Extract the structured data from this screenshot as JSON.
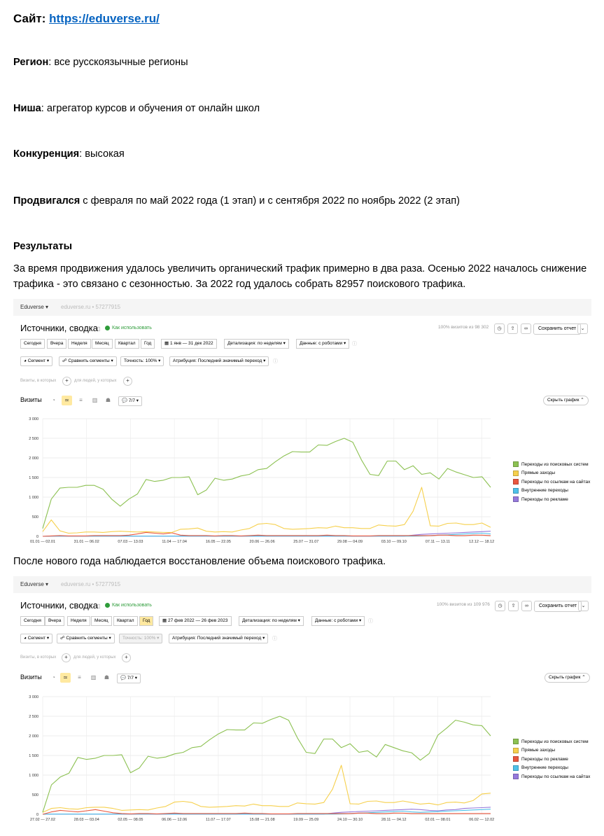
{
  "doc": {
    "site_label": "Сайт: ",
    "site_url": "https://eduverse.ru/",
    "region_label": "Регион",
    "region_value": ": все русскоязычные регионы",
    "niche_label": "Ниша",
    "niche_value": ": агрегатор курсов и обучения от онлайн школ",
    "competition_label": "Конкуренция",
    "competition_value": ": высокая",
    "promoted_label": "Продвигался",
    "promoted_value": " с февраля по май 2022 года (1 этап) и с сентября 2022 по ноябрь 2022 (2 этап)",
    "results_heading": "Результаты",
    "results_line1": "За время продвижения удалось увеличить органический трафик примерно в два раза. Осенью 2022 началось снижение",
    "results_line2": "трафика - это связано с сезонностью. За 2022 год удалось собрать 82957 поискового трафика.",
    "after_new_year": "После нового года наблюдается восстановление объема поискового трафика."
  },
  "screenshot1": {
    "account": "Eduverse ▾",
    "counter": "eduverse.ru • 57277915",
    "title": "Источники, сводка",
    "howto": "Как использовать",
    "visits_pct": "100% визитов из 98 302",
    "save_report": "Сохранить отчет",
    "periods": [
      "Сегодня",
      "Вчера",
      "Неделя",
      "Месяц",
      "Квартал",
      "Год"
    ],
    "date_range": "1 янв — 31 дек 2022",
    "detail": "Детализация: по неделям ▾",
    "data": "Данные: с роботами ▾",
    "segment": "Сегмент ▾",
    "compare": "Сравнить сегменты ▾",
    "accuracy": "Точность: 100% ▾",
    "attribution": "Атрибуция: Последний значимый переход ▾",
    "hint1": "Визиты, в которых",
    "hint2": "для людей, у которых",
    "visits_label": "Визиты",
    "series_count": "7/7 ▾",
    "hide_chart": "Скрыть график ⌃",
    "legend": [
      {
        "label": "Переходы из поисковых систем",
        "color": "#8cc152"
      },
      {
        "label": "Прямые заходы",
        "color": "#f6d04d"
      },
      {
        "label": "Переходы по ссылкам на сайтах",
        "color": "#e9573f"
      },
      {
        "label": "Внутренние переходы",
        "color": "#4fc1e9"
      },
      {
        "label": "Переходы по рекламе",
        "color": "#967adc"
      }
    ]
  },
  "screenshot2": {
    "account": "Eduverse ▾",
    "counter": "eduverse.ru • 57277915",
    "title": "Источники, сводка",
    "howto": "Как использовать",
    "visits_pct": "100% визитов из 109 976",
    "save_report": "Сохранить отчет",
    "periods": [
      "Сегодня",
      "Вчера",
      "Неделя",
      "Месяц",
      "Квартал",
      "Год"
    ],
    "date_range": "27 фев 2022 — 26 фев 2023",
    "detail": "Детализация: по неделям ▾",
    "data": "Данные: с роботами ▾",
    "segment": "Сегмент ▾",
    "compare": "Сравнить сегменты ▾",
    "accuracy": "Точность: 100% ▾",
    "attribution": "Атрибуция: Последний значимый переход ▾",
    "hint1": "Визиты, в которых",
    "hint2": "для людей, у которых",
    "visits_label": "Визиты",
    "series_count": "7/7 ▾",
    "hide_chart": "Скрыть график ⌃",
    "legend": [
      {
        "label": "Переходы из поисковых систем",
        "color": "#8cc152"
      },
      {
        "label": "Прямые заходы",
        "color": "#f6d04d"
      },
      {
        "label": "Переходы по рекламе",
        "color": "#e9573f"
      },
      {
        "label": "Внутренние переходы",
        "color": "#4fc1e9"
      },
      {
        "label": "Переходы по ссылкам на сайтах",
        "color": "#967adc"
      }
    ]
  },
  "chart_data": [
    {
      "type": "line",
      "title": "",
      "ylim": [
        0,
        3000
      ],
      "yticks": [
        0,
        500,
        1000,
        1500,
        2000,
        2500,
        3000
      ],
      "ytick_labels": [
        "0",
        "500",
        "1 000",
        "1 500",
        "2 000",
        "2 500",
        "3 000"
      ],
      "xtick_labels": [
        "01.01 — 02.01",
        "31.01 — 06.02",
        "07.03 — 13.03",
        "11.04 — 17.04",
        "16.05 — 22.05",
        "20.06 — 26.06",
        "25.07 — 31.07",
        "29.08 — 04.09",
        "03.10 — 09.10",
        "07.11 — 13.11",
        "12.12 — 18.12"
      ],
      "series": [
        {
          "name": "Переходы из поисковых систем",
          "color": "#8cc152",
          "values": [
            200,
            950,
            1230,
            1250,
            1250,
            1300,
            1300,
            1200,
            950,
            770,
            950,
            1080,
            1450,
            1400,
            1430,
            1500,
            1500,
            1520,
            1060,
            1180,
            1480,
            1430,
            1460,
            1540,
            1580,
            1700,
            1730,
            1900,
            2050,
            2160,
            2150,
            2150,
            2330,
            2320,
            2420,
            2500,
            2400,
            1950,
            1580,
            1550,
            1920,
            1920,
            1700,
            1800,
            1580,
            1620,
            1460,
            1730,
            1640,
            1570,
            1500,
            1520,
            1250
          ]
        },
        {
          "name": "Прямые заходы",
          "color": "#f6d04d",
          "values": [
            120,
            420,
            140,
            80,
            90,
            110,
            110,
            100,
            120,
            130,
            120,
            110,
            120,
            110,
            100,
            100,
            180,
            190,
            210,
            130,
            110,
            120,
            110,
            160,
            200,
            310,
            330,
            300,
            200,
            180,
            190,
            200,
            220,
            210,
            260,
            220,
            220,
            200,
            200,
            290,
            270,
            260,
            300,
            640,
            1250,
            270,
            260,
            330,
            340,
            300,
            300,
            340,
            230
          ]
        },
        {
          "name": "Переходы по ссылкам на сайтах",
          "color": "#e9573f",
          "values": [
            0,
            10,
            20,
            10,
            10,
            10,
            20,
            20,
            20,
            20,
            30,
            60,
            100,
            80,
            60,
            90,
            30,
            20,
            20,
            20,
            10,
            20,
            20,
            10,
            20,
            30,
            20,
            20,
            20,
            20,
            20,
            20,
            20,
            30,
            20,
            20,
            10,
            10,
            10,
            20,
            20,
            20,
            20,
            20,
            20,
            20,
            30,
            30,
            20,
            20,
            30,
            30,
            20
          ]
        },
        {
          "name": "Внутренние переходы",
          "color": "#4fc1e9",
          "values": [
            0,
            5,
            5,
            5,
            5,
            5,
            5,
            5,
            5,
            5,
            5,
            5,
            5,
            5,
            5,
            5,
            5,
            5,
            5,
            5,
            5,
            5,
            5,
            5,
            5,
            5,
            5,
            5,
            5,
            5,
            5,
            5,
            5,
            5,
            5,
            5,
            5,
            5,
            5,
            5,
            5,
            5,
            5,
            5,
            10,
            20,
            30,
            40,
            50,
            60,
            70,
            80,
            60
          ]
        },
        {
          "name": "Переходы по рекламе",
          "color": "#967adc",
          "values": [
            0,
            5,
            5,
            5,
            5,
            5,
            5,
            5,
            5,
            5,
            5,
            5,
            5,
            5,
            5,
            5,
            5,
            5,
            5,
            5,
            5,
            5,
            5,
            5,
            5,
            5,
            5,
            5,
            5,
            5,
            5,
            5,
            5,
            5,
            5,
            5,
            5,
            5,
            5,
            5,
            5,
            5,
            5,
            30,
            50,
            60,
            70,
            80,
            90,
            100,
            110,
            120,
            130
          ]
        }
      ]
    },
    {
      "type": "line",
      "title": "",
      "ylim": [
        0,
        3000
      ],
      "yticks": [
        0,
        500,
        1000,
        1500,
        2000,
        2500,
        3000
      ],
      "ytick_labels": [
        "0",
        "500",
        "1 000",
        "1 500",
        "2 000",
        "2 500",
        "3 000"
      ],
      "xtick_labels": [
        "27.02 — 27.02",
        "28.03 — 03.04",
        "02.05 — 08.05",
        "06.06 — 12.06",
        "11.07 — 17.07",
        "15.08 — 21.08",
        "19.09 — 25.09",
        "24.10 — 30.10",
        "28.11 — 04.12",
        "02.01 — 08.01",
        "06.02 — 12.02"
      ],
      "series": [
        {
          "name": "Переходы из поисковых систем",
          "color": "#8cc152",
          "values": [
            50,
            750,
            950,
            1050,
            1450,
            1400,
            1430,
            1500,
            1500,
            1520,
            1060,
            1180,
            1480,
            1430,
            1460,
            1540,
            1580,
            1700,
            1730,
            1900,
            2050,
            2160,
            2150,
            2150,
            2330,
            2320,
            2420,
            2500,
            2400,
            1950,
            1580,
            1550,
            1920,
            1920,
            1700,
            1800,
            1580,
            1620,
            1460,
            1780,
            1700,
            1620,
            1570,
            1380,
            1550,
            2020,
            2200,
            2400,
            2350,
            2280,
            2260,
            2000
          ]
        },
        {
          "name": "Прямые заходы",
          "color": "#f6d04d",
          "values": [
            50,
            150,
            170,
            140,
            130,
            170,
            180,
            180,
            150,
            100,
            110,
            120,
            110,
            160,
            200,
            310,
            330,
            300,
            200,
            180,
            190,
            200,
            220,
            210,
            260,
            220,
            220,
            200,
            200,
            290,
            270,
            260,
            300,
            640,
            1250,
            270,
            260,
            330,
            340,
            300,
            300,
            340,
            300,
            260,
            280,
            240,
            300,
            310,
            290,
            350,
            520,
            540
          ]
        },
        {
          "name": "Переходы по рекламе",
          "color": "#e9573f",
          "values": [
            0,
            60,
            100,
            80,
            60,
            90,
            120,
            80,
            40,
            20,
            10,
            20,
            20,
            10,
            20,
            30,
            20,
            20,
            20,
            20,
            20,
            20,
            20,
            30,
            20,
            20,
            10,
            10,
            10,
            20,
            20,
            20,
            20,
            20,
            20,
            20,
            30,
            30,
            20,
            20,
            30,
            30,
            20,
            20,
            20,
            20,
            20,
            20,
            20,
            20,
            20,
            20
          ]
        },
        {
          "name": "Внутренние переходы",
          "color": "#4fc1e9",
          "values": [
            0,
            5,
            5,
            5,
            5,
            5,
            5,
            5,
            5,
            5,
            5,
            5,
            5,
            5,
            5,
            5,
            5,
            5,
            5,
            5,
            5,
            5,
            5,
            5,
            5,
            5,
            5,
            5,
            5,
            5,
            5,
            5,
            5,
            5,
            10,
            20,
            30,
            40,
            50,
            60,
            70,
            80,
            60,
            50,
            60,
            70,
            80,
            90,
            100,
            110,
            120,
            130
          ]
        },
        {
          "name": "Переходы по ссылкам на сайтах",
          "color": "#967adc",
          "values": [
            0,
            5,
            5,
            5,
            5,
            5,
            5,
            5,
            5,
            5,
            5,
            5,
            5,
            5,
            5,
            5,
            5,
            5,
            5,
            5,
            5,
            5,
            5,
            5,
            5,
            5,
            5,
            5,
            5,
            5,
            5,
            5,
            5,
            30,
            50,
            60,
            70,
            80,
            90,
            100,
            110,
            120,
            130,
            120,
            100,
            90,
            110,
            120,
            150,
            160,
            170,
            180
          ]
        }
      ]
    }
  ]
}
